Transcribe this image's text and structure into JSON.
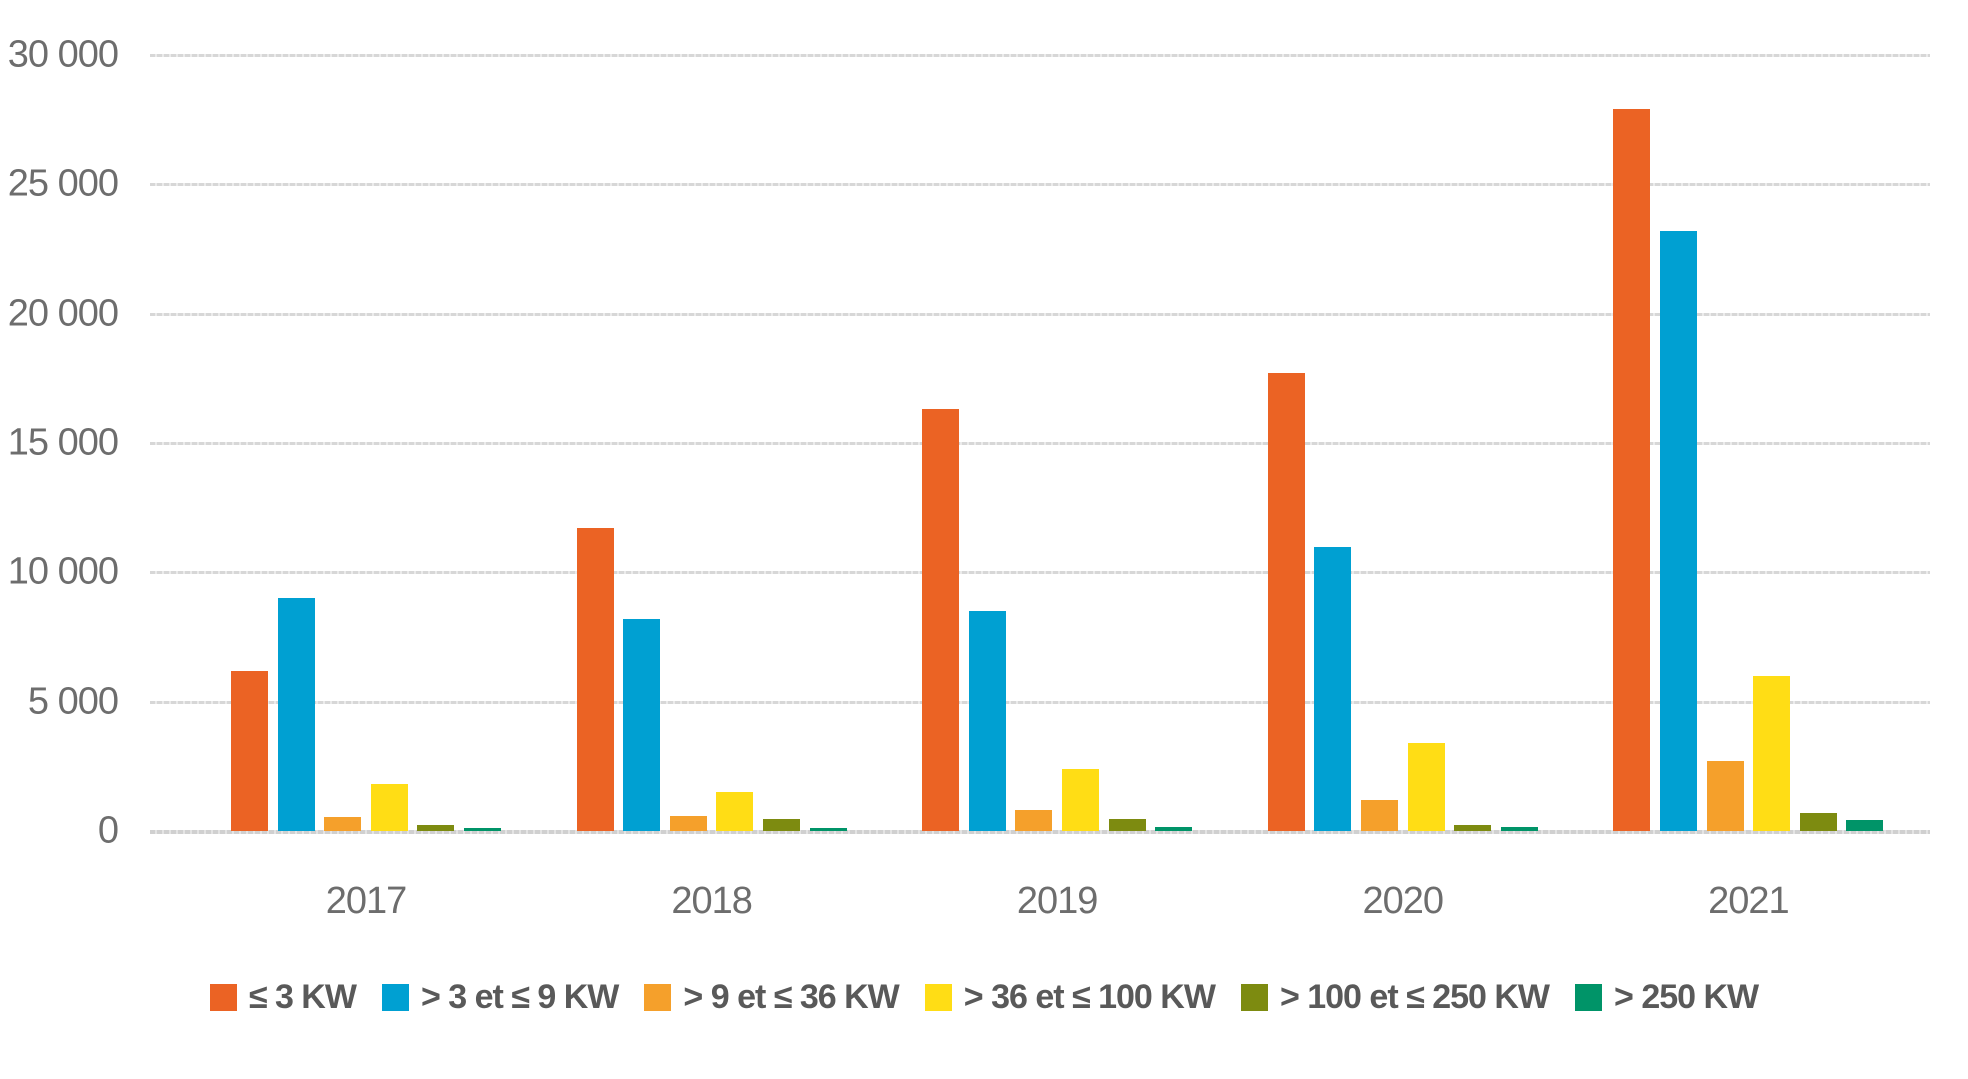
{
  "chart_data": {
    "type": "bar",
    "title": "",
    "xlabel": "",
    "ylabel": "",
    "categories": [
      "2017",
      "2018",
      "2019",
      "2020",
      "2021"
    ],
    "series": [
      {
        "name": "≤ 3 KW",
        "color": "#EB6324",
        "values": [
          6200,
          11700,
          16300,
          17700,
          27900
        ]
      },
      {
        "name": "> 3 et ≤ 9 KW",
        "color": "#00A0D2",
        "values": [
          9000,
          8200,
          8500,
          11000,
          23200
        ]
      },
      {
        "name": "> 9 et ≤ 36 KW",
        "color": "#F5A02B",
        "values": [
          550,
          600,
          800,
          1200,
          2700
        ]
      },
      {
        "name": "> 36 et ≤ 100 KW",
        "color": "#FFDD15",
        "values": [
          1800,
          1500,
          2400,
          3400,
          6000
        ]
      },
      {
        "name": "> 100 et ≤ 250 KW",
        "color": "#7D8B10",
        "values": [
          250,
          480,
          450,
          250,
          700
        ]
      },
      {
        "name": "> 250 KW",
        "color": "#009468",
        "values": [
          120,
          120,
          150,
          150,
          430
        ]
      }
    ],
    "ylim": [
      0,
      30000
    ],
    "ytick_step": 5000,
    "ytick_labels": [
      "0",
      "5 000",
      "10 000",
      "15 000",
      "20 000",
      "25 000",
      "30 000"
    ],
    "grid": true,
    "legend_position": "bottom",
    "axis_text_color": "#6d6d6d",
    "legend_text_color": "#595959",
    "gridline_color": "#d7d7d7"
  }
}
